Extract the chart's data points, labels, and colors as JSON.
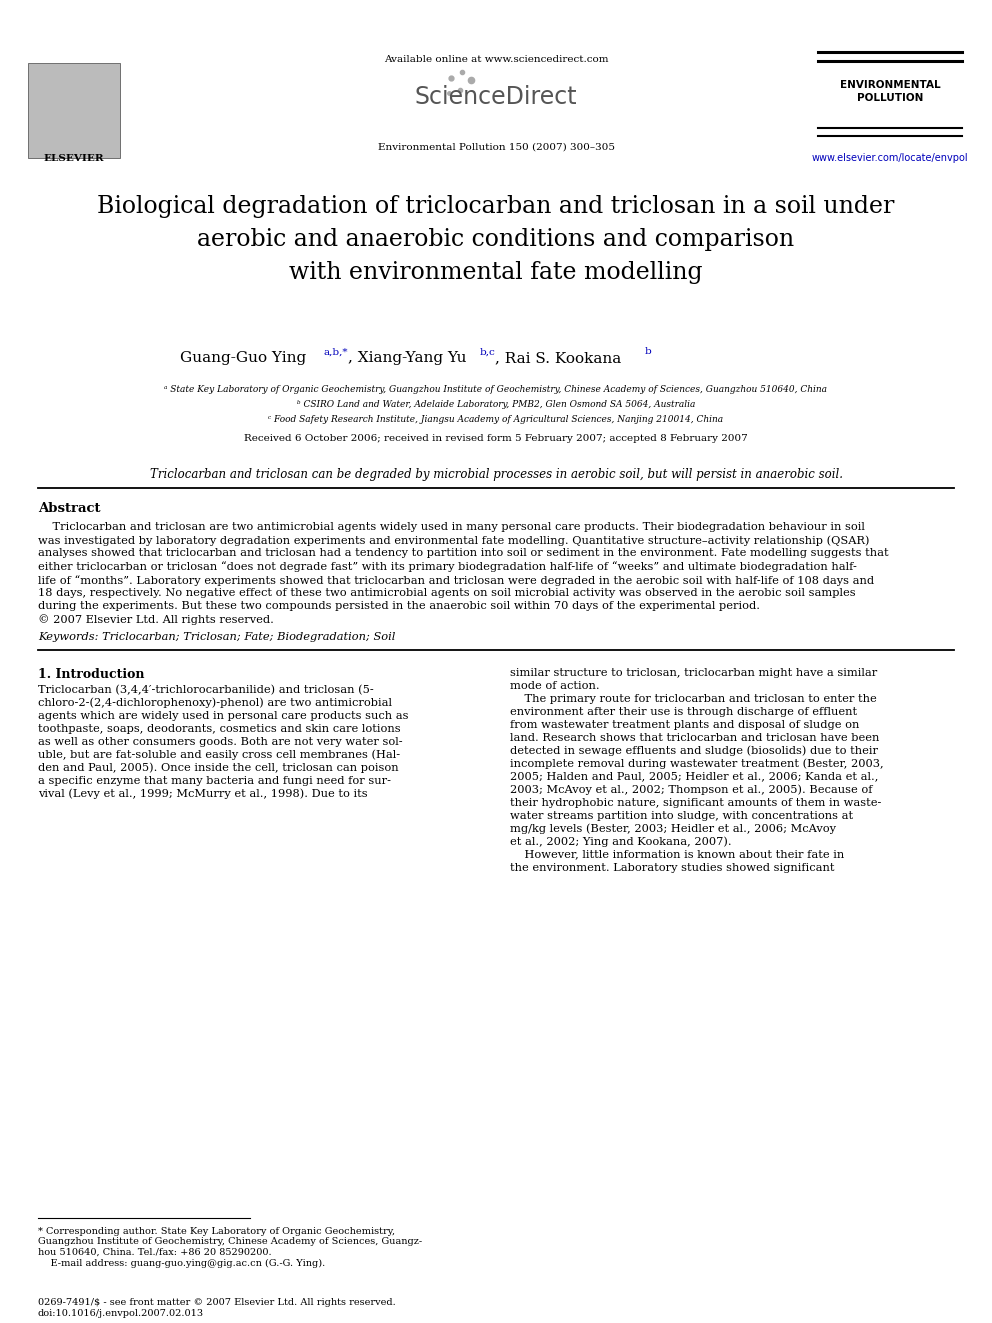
{
  "bg_color": "#ffffff",
  "header": {
    "available_online": "Available online at www.sciencedirect.com",
    "journal_name": "Environmental Pollution 150 (2007) 300–305",
    "journal_label_line1": "ENVIRONMENTAL",
    "journal_label_line2": "POLLUTION",
    "website": "www.elsevier.com/locate/envpol",
    "elsevier_text": "ELSEVIER"
  },
  "title": "Biological degradation of triclocarban and triclosan in a soil under\naerobic and anaerobic conditions and comparison\nwith environmental fate modelling",
  "affiliations": [
    "ᵃ State Key Laboratory of Organic Geochemistry, Guangzhou Institute of Geochemistry, Chinese Academy of Sciences, Guangzhou 510640, China",
    "ᵇ CSIRO Land and Water, Adelaide Laboratory, PMB2, Glen Osmond SA 5064, Australia",
    "ᶜ Food Safety Research Institute, Jiangsu Academy of Agricultural Sciences, Nanjing 210014, China"
  ],
  "received": "Received 6 October 2006; received in revised form 5 February 2007; accepted 8 February 2007",
  "highlight": "Triclocarban and triclosan can be degraded by microbial processes in aerobic soil, but will persist in anaerobic soil.",
  "abstract_title": "Abstract",
  "abstract_text": "    Triclocarban and triclosan are two antimicrobial agents widely used in many personal care products. Their biodegradation behaviour in soil\nwas investigated by laboratory degradation experiments and environmental fate modelling. Quantitative structure–activity relationship (QSAR)\nanalyses showed that triclocarban and triclosan had a tendency to partition into soil or sediment in the environment. Fate modelling suggests that\neither triclocarban or triclosan “does not degrade fast” with its primary biodegradation half-life of “weeks” and ultimate biodegradation half-\nlife of “months”. Laboratory experiments showed that triclocarban and triclosan were degraded in the aerobic soil with half-life of 108 days and\n18 days, respectively. No negative effect of these two antimicrobial agents on soil microbial activity was observed in the aerobic soil samples\nduring the experiments. But these two compounds persisted in the anaerobic soil within 70 days of the experimental period.\n© 2007 Elsevier Ltd. All rights reserved.",
  "keywords": "Keywords: Triclocarban; Triclosan; Fate; Biodegradation; Soil",
  "section1_title": "1. Introduction",
  "section1_col1": [
    "Triclocarban (3,4,4′-trichlorocarbanilide) and triclosan (5-",
    "chloro-2-(2,4-dichlorophenoxy)-phenol) are two antimicrobial",
    "agents which are widely used in personal care products such as",
    "toothpaste, soaps, deodorants, cosmetics and skin care lotions",
    "as well as other consumers goods. Both are not very water sol-",
    "uble, but are fat-soluble and easily cross cell membranes (Hal-",
    "den and Paul, 2005). Once inside the cell, triclosan can poison",
    "a specific enzyme that many bacteria and fungi need for sur-",
    "vival (Levy et al., 1999; McMurry et al., 1998). Due to its"
  ],
  "section1_col2": [
    "similar structure to triclosan, triclocarban might have a similar",
    "mode of action.",
    "    The primary route for triclocarban and triclosan to enter the",
    "environment after their use is through discharge of effluent",
    "from wastewater treatment plants and disposal of sludge on",
    "land. Research shows that triclocarban and triclosan have been",
    "detected in sewage effluents and sludge (biosolids) due to their",
    "incomplete removal during wastewater treatment (Bester, 2003,",
    "2005; Halden and Paul, 2005; Heidler et al., 2006; Kanda et al.,",
    "2003; McAvoy et al., 2002; Thompson et al., 2005). Because of",
    "their hydrophobic nature, significant amounts of them in waste-",
    "water streams partition into sludge, with concentrations at",
    "mg/kg levels (Bester, 2003; Heidler et al., 2006; McAvoy",
    "et al., 2002; Ying and Kookana, 2007).",
    "    However, little information is known about their fate in",
    "the environment. Laboratory studies showed significant"
  ],
  "footnote": [
    "* Corresponding author. State Key Laboratory of Organic Geochemistry,",
    "Guangzhou Institute of Geochemistry, Chinese Academy of Sciences, Guangz-",
    "hou 510640, China. Tel./fax: +86 20 85290200.",
    "    E-mail address: guang-guo.ying@gig.ac.cn (G.-G. Ying)."
  ],
  "footer": [
    "0269-7491/$ - see front matter © 2007 Elsevier Ltd. All rights reserved.",
    "doi:10.1016/j.envpol.2007.02.013"
  ]
}
